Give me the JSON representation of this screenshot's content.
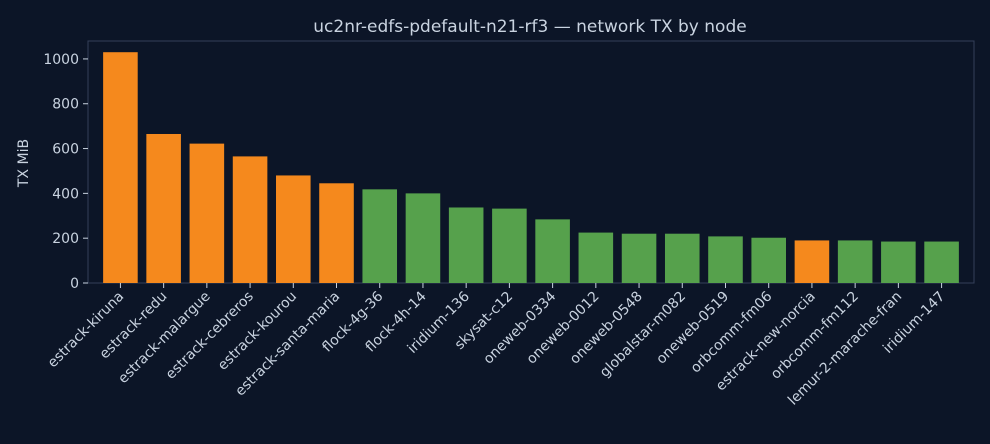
{
  "chart_data": {
    "type": "bar",
    "title": "uc2nr-edfs-pdefault-n21-rf3 — network TX by node",
    "xlabel": "",
    "ylabel": "TX MiB",
    "ylim": [
      0,
      1080
    ],
    "yticks": [
      0,
      200,
      400,
      600,
      800,
      1000
    ],
    "grid": false,
    "categories": [
      "estrack-kiruna",
      "estrack-redu",
      "estrack-malargue",
      "estrack-cebreros",
      "estrack-kourou",
      "estrack-santa-maria",
      "flock-4g-36",
      "flock-4h-14",
      "iridium-136",
      "skysat-c12",
      "oneweb-0334",
      "oneweb-0012",
      "oneweb-0548",
      "globalstar-m082",
      "oneweb-0519",
      "orbcomm-fm06",
      "estrack-new-norcia",
      "orbcomm-fm112",
      "lemur-2-marache-fran",
      "iridium-147"
    ],
    "values": [
      1030,
      665,
      622,
      565,
      480,
      445,
      418,
      400,
      337,
      332,
      284,
      225,
      220,
      220,
      208,
      202,
      190,
      190,
      185,
      185
    ],
    "bar_colors": [
      "#f5891d",
      "#f5891d",
      "#f5891d",
      "#f5891d",
      "#f5891d",
      "#f5891d",
      "#56a14c",
      "#56a14c",
      "#56a14c",
      "#56a14c",
      "#56a14c",
      "#56a14c",
      "#56a14c",
      "#56a14c",
      "#56a14c",
      "#56a14c",
      "#f5891d",
      "#56a14c",
      "#56a14c",
      "#56a14c"
    ]
  },
  "colors": {
    "background": "#0c1527",
    "plot_background": "#0c1527",
    "text": "#c9d3e0",
    "axis": "#34405a"
  }
}
